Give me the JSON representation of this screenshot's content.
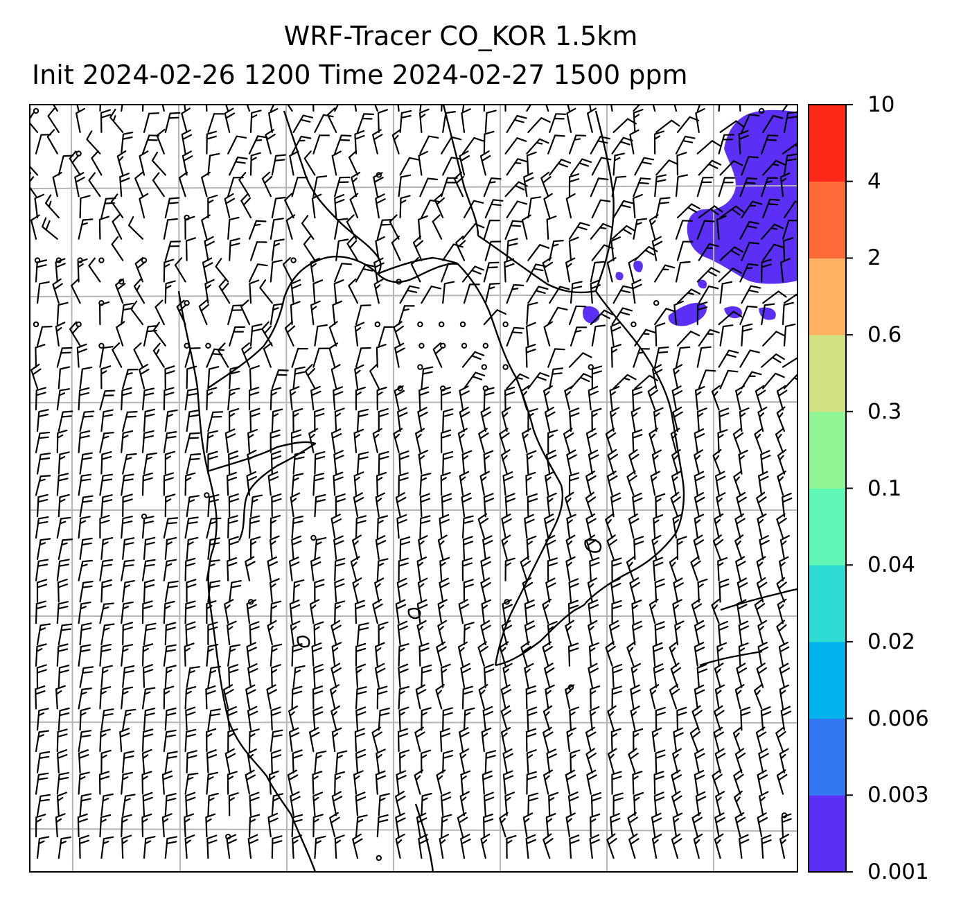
{
  "title": {
    "line1": "WRF-Tracer CO_KOR 1.5km",
    "line2": "Init 2024-02-26 1200 Time 2024-02-27 1500 ppm"
  },
  "colorbar": {
    "levels": [
      "0.001",
      "0.003",
      "0.006",
      "0.02",
      "0.04",
      "0.1",
      "0.3",
      "0.6",
      "2",
      "4",
      "10"
    ],
    "colors": [
      "#5b2ff5",
      "#3377f2",
      "#00b3ec",
      "#2ddbd3",
      "#5ff6b6",
      "#8ff594",
      "#d1e080",
      "#fdb161",
      "#ff6b38",
      "#ff2717"
    ]
  },
  "map": {
    "background": "#ffffff",
    "gridline_color": "#b5b5b5",
    "coastline_color": "#000000",
    "tracer_color": "#5b2ff5",
    "tracer_level": "0.001-0.003"
  }
}
